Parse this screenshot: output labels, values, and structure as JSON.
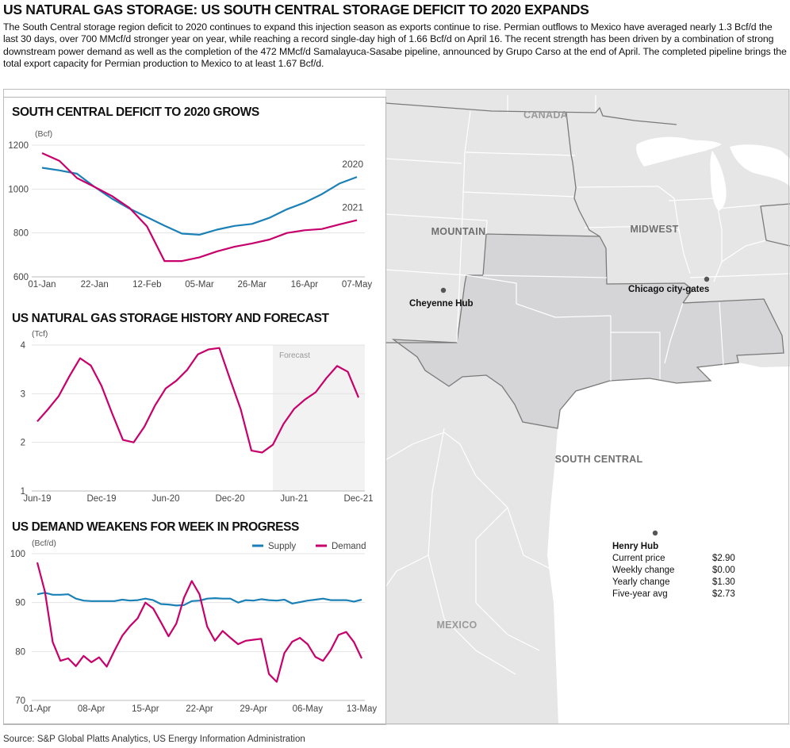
{
  "header": {
    "title": "US NATURAL GAS STORAGE: US SOUTH CENTRAL STORAGE DEFICIT TO 2020 EXPANDS",
    "body": "The South Central storage region deficit to 2020 continues to expand this injection season as exports continue to rise. Permian outflows to Mexico have averaged nearly 1.3 Bcf/d the last 30 days, over 700 MMcf/d stronger year on year, while reaching a record single-day high of 1.66 Bcf/d on April 16. The recent strength has been driven by a combination of strong downstream power demand as well as the completion of the 472 MMcf/d Samalayuca-Sasabe pipeline, announced by Grupo Carso at the end of April. The completed pipeline brings the total export capacity for Permian production to Mexico to at least 1.67 Bcf/d."
  },
  "colors": {
    "supply_2020": "#1a80b6",
    "demand_2021": "#c8006b",
    "forecast_shade": "#f2f2f2",
    "south_central": "#d5d5d7",
    "land": "#e6e6e6"
  },
  "chart_data": [
    {
      "type": "line",
      "title": "SOUTH CENTRAL DEFICIT TO 2020 GROWS",
      "ylabel": "(Bcf)",
      "ylim": [
        600,
        1200
      ],
      "yticks": [
        "1200",
        "1000",
        "800",
        "600"
      ],
      "xticks": [
        "01-Jan",
        "22-Jan",
        "12-Feb",
        "05-Mar",
        "26-Mar",
        "16-Apr",
        "07-May"
      ],
      "x": [
        "01-Jan",
        "08-Jan",
        "15-Jan",
        "22-Jan",
        "29-Jan",
        "05-Feb",
        "12-Feb",
        "19-Feb",
        "26-Feb",
        "05-Mar",
        "12-Mar",
        "19-Mar",
        "26-Mar",
        "02-Apr",
        "09-Apr",
        "16-Apr",
        "23-Apr",
        "30-Apr",
        "07-May"
      ],
      "grid": true,
      "series": [
        {
          "name": "2020",
          "color": "#1a80b6",
          "values": [
            1097,
            1085,
            1070,
            1010,
            956,
            911,
            872,
            833,
            797,
            792,
            815,
            832,
            841,
            869,
            908,
            938,
            977,
            1025,
            1055
          ]
        },
        {
          "name": "2021",
          "color": "#c8006b",
          "values": [
            1164,
            1128,
            1050,
            1010,
            968,
            914,
            830,
            672,
            672,
            689,
            716,
            737,
            752,
            770,
            800,
            812,
            818,
            839,
            858
          ]
        }
      ]
    },
    {
      "type": "line",
      "title": "US NATURAL GAS STORAGE HISTORY AND FORECAST",
      "ylabel": "(Tcf)",
      "ylim": [
        1,
        4
      ],
      "yticks": [
        "4",
        "3",
        "2",
        "1"
      ],
      "xticks": [
        "Jun-19",
        "Dec-19",
        "Jun-20",
        "Dec-20",
        "Jun-21",
        "Dec-21"
      ],
      "x": [
        "Jun-19",
        "Jul-19",
        "Aug-19",
        "Sep-19",
        "Oct-19",
        "Nov-19",
        "Dec-19",
        "Jan-20",
        "Feb-20",
        "Mar-20",
        "Apr-20",
        "May-20",
        "Jun-20",
        "Jul-20",
        "Aug-20",
        "Sep-20",
        "Oct-20",
        "Nov-20",
        "Dec-20",
        "Jan-21",
        "Feb-21",
        "Mar-21",
        "Apr-21",
        "May-21",
        "Jun-21",
        "Jul-21",
        "Aug-21",
        "Sep-21",
        "Oct-21",
        "Nov-21",
        "Dec-21"
      ],
      "forecast_label": "Forecast",
      "forecast_start": "Apr-21",
      "grid": true,
      "series": [
        {
          "color": "#c8006b",
          "values": [
            2.43,
            2.68,
            2.95,
            3.36,
            3.73,
            3.58,
            3.16,
            2.59,
            2.05,
            2.0,
            2.32,
            2.76,
            3.11,
            3.27,
            3.49,
            3.81,
            3.91,
            3.94,
            3.3,
            2.68,
            1.83,
            1.79,
            1.95,
            2.38,
            2.69,
            2.88,
            3.03,
            3.32,
            3.57,
            3.45,
            2.92
          ]
        }
      ]
    },
    {
      "type": "line",
      "title": "US DEMAND WEAKENS FOR WEEK IN PROGRESS",
      "ylabel": "(Bcf/d)",
      "ylim": [
        70,
        100
      ],
      "yticks": [
        "100",
        "90",
        "80",
        "70"
      ],
      "xticks": [
        "01-Apr",
        "08-Apr",
        "15-Apr",
        "22-Apr",
        "29-Apr",
        "06-May",
        "13-May"
      ],
      "x_range": [
        "01-Apr",
        "13-May"
      ],
      "legend": "top-right",
      "grid": true,
      "series": [
        {
          "name": "Supply",
          "color": "#1a80b6",
          "values": [
            91.7,
            92.0,
            91.6,
            91.6,
            91.7,
            90.8,
            90.4,
            90.3,
            90.3,
            90.3,
            90.3,
            90.6,
            90.4,
            90.5,
            90.8,
            90.5,
            89.7,
            89.6,
            89.4,
            89.5,
            90.3,
            90.4,
            90.8,
            90.9,
            90.8,
            90.8,
            90.0,
            90.5,
            90.4,
            90.7,
            90.5,
            90.4,
            90.6,
            89.8,
            90.1,
            90.4,
            90.6,
            90.8,
            90.5,
            90.5,
            90.5,
            90.2,
            90.6
          ]
        },
        {
          "name": "Demand",
          "color": "#c8006b",
          "values": [
            98.2,
            92.2,
            81.9,
            78.1,
            78.6,
            77.0,
            79.1,
            77.8,
            78.8,
            76.9,
            80.2,
            83.2,
            85.2,
            86.8,
            90.0,
            88.8,
            86.0,
            83.1,
            85.7,
            91.0,
            94.4,
            91.7,
            85.1,
            82.2,
            84.2,
            82.8,
            81.5,
            82.2,
            82.4,
            82.6,
            75.4,
            73.8,
            79.7,
            82.0,
            82.8,
            81.5,
            78.9,
            78.1,
            80.3,
            83.4,
            84.0,
            81.9,
            78.6
          ]
        }
      ]
    }
  ],
  "map": {
    "labels": {
      "canada": "CANADA",
      "mountain": "MOUNTAIN",
      "midwest": "MIDWEST",
      "south_central": "SOUTH CENTRAL",
      "mexico": "MEXICO"
    },
    "hubs": {
      "cheyenne": "Cheyenne Hub",
      "chicago": "Chicago city-gates",
      "henry": "Henry Hub"
    },
    "henry_hub_table": [
      {
        "label": "Current price",
        "value": "$2.90"
      },
      {
        "label": "Weekly change",
        "value": "$0.00"
      },
      {
        "label": "Yearly change",
        "value": "$1.30"
      },
      {
        "label": "Five-year avg",
        "value": "$2.73"
      }
    ]
  },
  "footer": {
    "source": "Source: S&P Global Platts Analytics, US Energy Information Administration"
  }
}
